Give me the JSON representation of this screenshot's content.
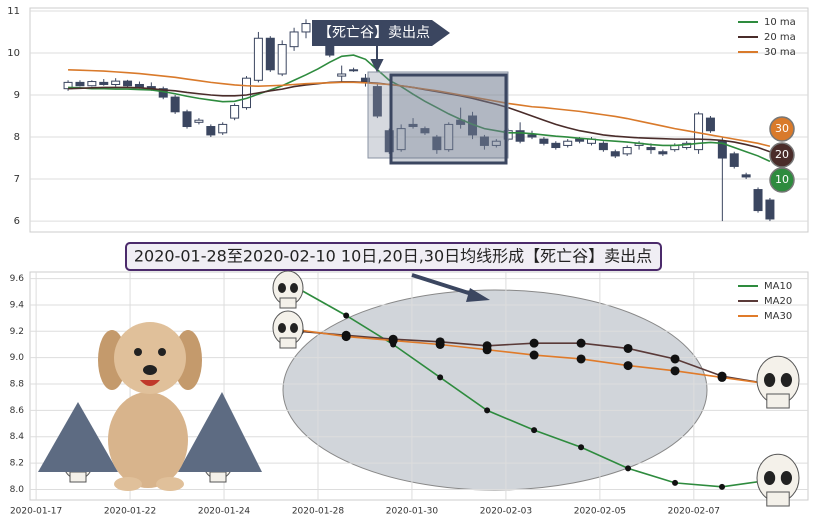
{
  "chart_data": [
    {
      "type": "candlestick",
      "annotation": "【死亡谷】卖出点",
      "ylim": [
        5.74,
        11.07
      ],
      "yticks": [
        6,
        7,
        8,
        9,
        10,
        11
      ],
      "xlim": [
        -3.2,
        62.2
      ],
      "grid": true,
      "up_color": "#ffffff",
      "down_color": "#3b4660",
      "legend": "upper right",
      "candles": {
        "open": [
          9.15,
          9.3,
          9.22,
          9.3,
          9.25,
          9.33,
          9.25,
          9.2,
          9.15,
          8.95,
          8.6,
          8.35,
          8.25,
          8.1,
          8.45,
          8.7,
          9.35,
          10.35,
          9.5,
          10.15,
          10.5,
          10.65,
          10.35,
          9.45,
          9.6,
          9.4,
          9.2,
          8.15,
          7.7,
          8.3,
          8.2,
          8.0,
          7.7,
          8.4,
          8.5,
          8.0,
          7.8,
          7.95,
          8.15,
          8.05,
          7.95,
          7.85,
          7.8,
          7.95,
          7.85,
          7.85,
          7.65,
          7.6,
          7.8,
          7.75,
          7.65,
          7.7,
          7.75,
          7.7,
          8.45,
          7.9,
          7.6,
          7.1,
          6.75,
          6.5
        ],
        "high": [
          9.35,
          9.35,
          9.35,
          9.38,
          9.4,
          9.36,
          9.32,
          9.3,
          9.2,
          9.0,
          8.65,
          8.45,
          8.3,
          8.35,
          8.8,
          9.45,
          10.5,
          10.4,
          10.3,
          10.6,
          10.8,
          10.75,
          10.4,
          9.7,
          9.65,
          9.5,
          9.25,
          8.2,
          8.3,
          8.45,
          8.25,
          8.05,
          8.35,
          8.7,
          8.6,
          8.05,
          7.95,
          8.2,
          8.35,
          8.15,
          8.0,
          7.9,
          7.95,
          8.0,
          8.0,
          7.9,
          7.7,
          7.8,
          7.9,
          7.85,
          7.7,
          7.85,
          7.9,
          8.6,
          8.5,
          8.0,
          7.65,
          7.15,
          6.8,
          6.55
        ],
        "low": [
          9.1,
          9.2,
          9.2,
          9.22,
          9.2,
          9.18,
          9.15,
          9.1,
          8.9,
          8.55,
          8.2,
          8.3,
          8.0,
          8.05,
          8.4,
          8.65,
          9.3,
          9.55,
          9.45,
          10.05,
          10.35,
          10.3,
          9.9,
          9.3,
          9.55,
          9.2,
          8.45,
          7.6,
          7.65,
          8.2,
          8.05,
          7.6,
          7.65,
          8.2,
          7.95,
          7.7,
          7.75,
          7.9,
          7.85,
          7.95,
          7.8,
          7.7,
          7.75,
          7.85,
          7.8,
          7.65,
          7.5,
          7.55,
          7.7,
          7.6,
          7.55,
          7.65,
          7.7,
          7.6,
          8.1,
          6.0,
          7.25,
          7.0,
          6.2,
          6.0
        ],
        "close": [
          9.3,
          9.22,
          9.32,
          9.25,
          9.33,
          9.22,
          9.18,
          9.15,
          8.95,
          8.6,
          8.25,
          8.4,
          8.05,
          8.3,
          8.75,
          9.4,
          10.35,
          9.6,
          10.2,
          10.5,
          10.7,
          10.35,
          9.95,
          9.5,
          9.58,
          9.3,
          8.5,
          7.65,
          8.2,
          8.25,
          8.1,
          7.7,
          8.3,
          8.3,
          8.05,
          7.8,
          7.9,
          8.15,
          7.9,
          8.0,
          7.85,
          7.75,
          7.9,
          7.9,
          7.95,
          7.7,
          7.55,
          7.75,
          7.85,
          7.7,
          7.6,
          7.8,
          7.85,
          8.55,
          8.15,
          7.5,
          7.3,
          7.05,
          6.25,
          6.05
        ]
      },
      "series": [
        {
          "name": "10 ma",
          "color": "#2e8b3e",
          "badge": "10",
          "values": [
            9.18,
            9.17,
            9.15,
            9.15,
            9.14,
            9.14,
            9.13,
            9.12,
            9.08,
            9.03,
            8.97,
            8.92,
            8.88,
            8.84,
            8.85,
            8.92,
            9.02,
            9.12,
            9.22,
            9.35,
            9.48,
            9.62,
            9.78,
            9.92,
            9.95,
            9.85,
            9.6,
            9.35,
            9.2,
            9.02,
            8.85,
            8.7,
            8.55,
            8.42,
            8.3,
            8.2,
            8.15,
            8.1,
            8.1,
            8.08,
            8.05,
            8.02,
            8.0,
            7.97,
            7.95,
            7.92,
            7.9,
            7.88,
            7.85,
            7.82,
            7.8,
            7.8,
            7.82,
            7.85,
            7.87,
            7.85,
            7.75,
            7.65,
            7.55,
            7.42
          ]
        },
        {
          "name": "20 ma",
          "color": "#4a2c2a",
          "badge": "20",
          "values": [
            9.15,
            9.16,
            9.17,
            9.18,
            9.18,
            9.18,
            9.17,
            9.15,
            9.12,
            9.1,
            9.06,
            9.03,
            9.0,
            8.98,
            8.98,
            9.0,
            9.05,
            9.1,
            9.14,
            9.2,
            9.24,
            9.27,
            9.3,
            9.31,
            9.31,
            9.3,
            9.28,
            9.25,
            9.22,
            9.18,
            9.13,
            9.08,
            9.03,
            8.98,
            8.92,
            8.85,
            8.78,
            8.7,
            8.6,
            8.5,
            8.4,
            8.3,
            8.22,
            8.15,
            8.1,
            8.05,
            8.02,
            8.0,
            7.98,
            7.97,
            7.96,
            7.95,
            7.95,
            7.95,
            7.94,
            7.92,
            7.88,
            7.82,
            7.75,
            7.65
          ]
        },
        {
          "name": "30 ma",
          "color": "#d97a2b",
          "badge": "30",
          "values": [
            9.6,
            9.59,
            9.58,
            9.57,
            9.55,
            9.53,
            9.51,
            9.48,
            9.45,
            9.42,
            9.38,
            9.34,
            9.3,
            9.27,
            9.24,
            9.22,
            9.21,
            9.22,
            9.23,
            9.25,
            9.27,
            9.28,
            9.29,
            9.3,
            9.3,
            9.29,
            9.27,
            9.25,
            9.22,
            9.18,
            9.14,
            9.1,
            9.05,
            9.0,
            8.95,
            8.9,
            8.85,
            8.8,
            8.76,
            8.72,
            8.7,
            8.67,
            8.64,
            8.61,
            8.57,
            8.53,
            8.49,
            8.44,
            8.38,
            8.32,
            8.26,
            8.2,
            8.15,
            8.1,
            8.05,
            8.0,
            7.95,
            7.9,
            7.85,
            7.78
          ]
        }
      ]
    },
    {
      "type": "line",
      "title": "2020-01-28至2020-02-10 10日,20日,30日均线形成【死亡谷】卖出点",
      "x": [
        5.6,
        6.6,
        7.6,
        8.6,
        9.6,
        10.6,
        11.6,
        12.6,
        13.6,
        14.6,
        15.6
      ],
      "xlim": [
        -0.13,
        16.43
      ],
      "xticks": [
        {
          "value": 0,
          "label": "2020-01-17"
        },
        {
          "value": 2,
          "label": "2020-01-22"
        },
        {
          "value": 4,
          "label": "2020-01-24"
        },
        {
          "value": 6,
          "label": "2020-01-28"
        },
        {
          "value": 8,
          "label": "2020-01-30"
        },
        {
          "value": 10,
          "label": "2020-02-03"
        },
        {
          "value": 12,
          "label": "2020-02-05"
        },
        {
          "value": 14,
          "label": "2020-02-07"
        }
      ],
      "ylim": [
        7.92,
        9.65
      ],
      "yticks": [
        {
          "value": 8,
          "label": "8.0"
        },
        8.2,
        8.4,
        8.6,
        8.8,
        {
          "value": 9,
          "label": "9.0"
        },
        9.2,
        9.4,
        9.6
      ],
      "grid": true,
      "legend": "upper right",
      "series": [
        {
          "name": "MA10",
          "color": "#2e8b3e",
          "values": [
            9.52,
            9.32,
            9.1,
            8.85,
            8.6,
            8.45,
            8.32,
            8.16,
            8.05,
            8.02,
            8.07
          ]
        },
        {
          "name": "MA20",
          "color": "#5a3a38",
          "values": [
            9.2,
            9.17,
            9.14,
            9.12,
            9.09,
            9.11,
            9.11,
            9.07,
            8.99,
            8.86,
            8.8
          ]
        },
        {
          "name": "MA30",
          "color": "#e07b2a",
          "values": [
            9.21,
            9.16,
            9.13,
            9.1,
            9.06,
            9.02,
            8.99,
            8.94,
            8.9,
            8.85,
            8.8
          ]
        }
      ]
    }
  ]
}
